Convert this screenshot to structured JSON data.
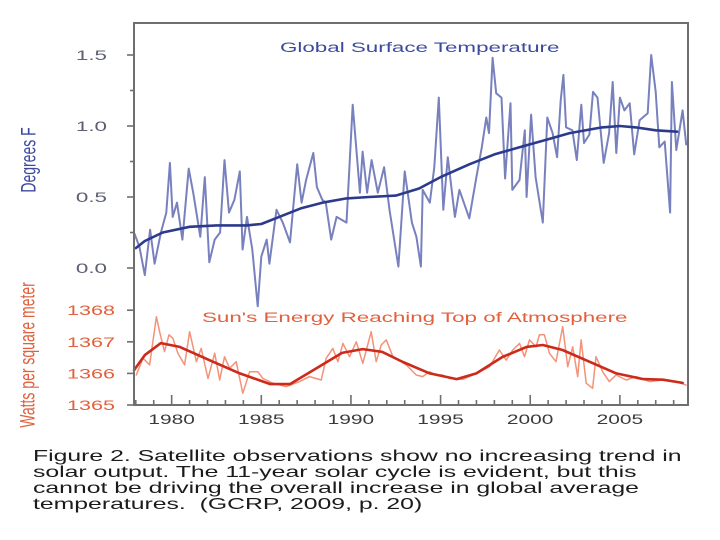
{
  "caption": {
    "lines": [
      "Figure 2. Satellite observations show no increasing trend in",
      "solar output. The 11-year solar cycle is evident, but this",
      "cannot be driving the overall increase in global average",
      "temperatures.  (GCRP, 2009, p. 20)"
    ]
  },
  "colors": {
    "frame": "#6f6f6f",
    "temperature_text": "#3b4b9e",
    "temperature_tick_text": "#5d6072",
    "solar_text": "#e2603c",
    "x_tick_text": "#3a3a3a"
  },
  "chart_data": [
    {
      "type": "line",
      "title": "Global Surface Temperature",
      "xlabel": "",
      "ylabel": "Degrees F",
      "xlim": [
        1977.9,
        2008.8
      ],
      "ylim": [
        0.0,
        1.5
      ],
      "yticks": [
        "0.0",
        "0.5",
        "1.0",
        "1.5"
      ],
      "minor_yticks": true,
      "grid": false,
      "series": [
        {
          "name": "Observed",
          "color": "#6d76b9",
          "points": [
            [
              1977.9,
              0.25
            ],
            [
              1978.2,
              0.15
            ],
            [
              1978.5,
              -0.05
            ],
            [
              1978.8,
              0.27
            ],
            [
              1979.05,
              0.03
            ],
            [
              1979.4,
              0.25
            ],
            [
              1979.7,
              0.39
            ],
            [
              1979.9,
              0.74
            ],
            [
              1980.06,
              0.36
            ],
            [
              1980.3,
              0.46
            ],
            [
              1980.6,
              0.2
            ],
            [
              1980.95,
              0.7
            ],
            [
              1981.2,
              0.53
            ],
            [
              1981.6,
              0.22
            ],
            [
              1981.85,
              0.64
            ],
            [
              1982.1,
              0.04
            ],
            [
              1982.4,
              0.2
            ],
            [
              1982.7,
              0.25
            ],
            [
              1982.95,
              0.76
            ],
            [
              1983.2,
              0.39
            ],
            [
              1983.5,
              0.48
            ],
            [
              1983.8,
              0.68
            ],
            [
              1983.96,
              0.13
            ],
            [
              1984.2,
              0.36
            ],
            [
              1984.5,
              0.13
            ],
            [
              1984.8,
              -0.27
            ],
            [
              1985.0,
              0.08
            ],
            [
              1985.3,
              0.2
            ],
            [
              1985.45,
              0.03
            ],
            [
              1985.85,
              0.41
            ],
            [
              1986.2,
              0.32
            ],
            [
              1986.6,
              0.18
            ],
            [
              1987.0,
              0.73
            ],
            [
              1987.25,
              0.46
            ],
            [
              1987.5,
              0.62
            ],
            [
              1987.9,
              0.81
            ],
            [
              1988.1,
              0.57
            ],
            [
              1988.4,
              0.48
            ],
            [
              1988.6,
              0.46
            ],
            [
              1988.9,
              0.2
            ],
            [
              1989.2,
              0.36
            ],
            [
              1989.75,
              0.32
            ],
            [
              1990.1,
              1.15
            ],
            [
              1990.5,
              0.53
            ],
            [
              1990.65,
              0.82
            ],
            [
              1990.9,
              0.53
            ],
            [
              1991.15,
              0.76
            ],
            [
              1991.5,
              0.53
            ],
            [
              1991.85,
              0.71
            ],
            [
              1992.15,
              0.41
            ],
            [
              1992.65,
              0.01
            ],
            [
              1993.0,
              0.68
            ],
            [
              1993.4,
              0.32
            ],
            [
              1993.65,
              0.22
            ],
            [
              1993.9,
              0.01
            ],
            [
              1994.0,
              0.55
            ],
            [
              1994.4,
              0.46
            ],
            [
              1994.65,
              0.71
            ],
            [
              1994.9,
              1.2
            ],
            [
              1995.15,
              0.41
            ],
            [
              1995.4,
              0.78
            ],
            [
              1995.8,
              0.36
            ],
            [
              1996.05,
              0.55
            ],
            [
              1996.6,
              0.35
            ],
            [
              1997.0,
              0.64
            ],
            [
              1997.3,
              0.85
            ],
            [
              1997.55,
              1.06
            ],
            [
              1997.7,
              0.95
            ],
            [
              1997.9,
              1.48
            ],
            [
              1998.1,
              1.23
            ],
            [
              1998.4,
              1.2
            ],
            [
              1998.6,
              0.63
            ],
            [
              1998.9,
              1.16
            ],
            [
              1999.0,
              0.55
            ],
            [
              1999.4,
              0.62
            ],
            [
              1999.7,
              0.97
            ],
            [
              1999.8,
              0.5
            ],
            [
              2000.05,
              1.08
            ],
            [
              2000.3,
              0.64
            ],
            [
              2000.7,
              0.32
            ],
            [
              2000.95,
              1.06
            ],
            [
              2001.25,
              0.95
            ],
            [
              2001.5,
              0.78
            ],
            [
              2001.7,
              1.18
            ],
            [
              2001.85,
              1.36
            ],
            [
              2002.0,
              0.99
            ],
            [
              2002.35,
              0.97
            ],
            [
              2002.6,
              0.76
            ],
            [
              2002.85,
              1.15
            ],
            [
              2003.0,
              0.88
            ],
            [
              2003.3,
              0.94
            ],
            [
              2003.5,
              1.24
            ],
            [
              2003.75,
              1.2
            ],
            [
              2004.1,
              0.74
            ],
            [
              2004.4,
              0.95
            ],
            [
              2004.6,
              1.31
            ],
            [
              2004.8,
              0.81
            ],
            [
              2005.0,
              1.2
            ],
            [
              2005.25,
              1.11
            ],
            [
              2005.55,
              1.16
            ],
            [
              2005.8,
              0.8
            ],
            [
              2006.1,
              1.04
            ],
            [
              2006.55,
              1.09
            ],
            [
              2006.75,
              1.5
            ],
            [
              2007.0,
              1.24
            ],
            [
              2007.2,
              0.85
            ],
            [
              2007.5,
              0.89
            ],
            [
              2007.8,
              0.39
            ],
            [
              2007.9,
              1.31
            ],
            [
              2008.15,
              0.83
            ],
            [
              2008.5,
              1.11
            ],
            [
              2008.7,
              0.87
            ]
          ]
        },
        {
          "name": "Smoothed trend",
          "color": "#2c3a8c",
          "points": [
            [
              1978.0,
              0.14
            ],
            [
              1978.5,
              0.19
            ],
            [
              1979.5,
              0.25
            ],
            [
              1981.0,
              0.29
            ],
            [
              1982.5,
              0.3
            ],
            [
              1984.2,
              0.3
            ],
            [
              1985.0,
              0.31
            ],
            [
              1986.0,
              0.36
            ],
            [
              1987.2,
              0.42
            ],
            [
              1988.4,
              0.46
            ],
            [
              1989.75,
              0.49
            ],
            [
              1991.0,
              0.5
            ],
            [
              1992.5,
              0.51
            ],
            [
              1993.8,
              0.56
            ],
            [
              1995.0,
              0.64
            ],
            [
              1996.6,
              0.73
            ],
            [
              1998.0,
              0.8
            ],
            [
              1999.4,
              0.85
            ],
            [
              2000.8,
              0.9
            ],
            [
              2002.2,
              0.95
            ],
            [
              2004.0,
              0.99
            ],
            [
              2005.0,
              1.0
            ],
            [
              2005.9,
              0.99
            ],
            [
              2007.0,
              0.97
            ],
            [
              2008.2,
              0.96
            ]
          ]
        }
      ]
    },
    {
      "type": "line",
      "title": "Sun's Energy Reaching Top of Atmosphere",
      "xlabel": "",
      "ylabel": "Watts per square meter",
      "xlim": [
        1977.9,
        2008.8
      ],
      "ylim": [
        1365,
        1368
      ],
      "yticks": [
        "1365",
        "1366",
        "1367",
        "1368"
      ],
      "xticks": [
        "1980",
        "1985",
        "1990",
        "1995",
        "2000",
        "2005"
      ],
      "minor_xticks": "yearly",
      "grid": false,
      "series": [
        {
          "name": "Observed",
          "color": "#f3896c",
          "points": [
            [
              1978.03,
              1365.95
            ],
            [
              1978.4,
              1366.48
            ],
            [
              1978.77,
              1366.27
            ],
            [
              1979.15,
              1367.79
            ],
            [
              1979.33,
              1367.32
            ],
            [
              1979.6,
              1366.69
            ],
            [
              1979.85,
              1367.22
            ],
            [
              1980.07,
              1367.11
            ],
            [
              1980.35,
              1366.64
            ],
            [
              1980.72,
              1366.27
            ],
            [
              1981.0,
              1367.32
            ],
            [
              1981.38,
              1366.37
            ],
            [
              1981.65,
              1366.79
            ],
            [
              1982.03,
              1365.84
            ],
            [
              1982.4,
              1366.64
            ],
            [
              1982.68,
              1365.79
            ],
            [
              1982.95,
              1366.53
            ],
            [
              1983.23,
              1366.16
            ],
            [
              1983.6,
              1366.37
            ],
            [
              1983.97,
              1365.37
            ],
            [
              1984.35,
              1366.05
            ],
            [
              1984.81,
              1366.05
            ],
            [
              1985.09,
              1365.84
            ],
            [
              1985.65,
              1365.69
            ],
            [
              1986.39,
              1365.58
            ],
            [
              1987.13,
              1365.74
            ],
            [
              1987.69,
              1365.9
            ],
            [
              1988.34,
              1365.79
            ],
            [
              1988.62,
              1366.48
            ],
            [
              1988.99,
              1366.79
            ],
            [
              1989.27,
              1366.37
            ],
            [
              1989.55,
              1366.95
            ],
            [
              1989.92,
              1366.53
            ],
            [
              1990.3,
              1367.0
            ],
            [
              1990.66,
              1366.32
            ],
            [
              1991.13,
              1367.32
            ],
            [
              1991.41,
              1366.37
            ],
            [
              1991.69,
              1366.9
            ],
            [
              1991.97,
              1367.06
            ],
            [
              1992.34,
              1366.53
            ],
            [
              1992.71,
              1366.42
            ],
            [
              1993.08,
              1366.27
            ],
            [
              1993.64,
              1365.95
            ],
            [
              1994.0,
              1365.9
            ],
            [
              1994.38,
              1366.05
            ],
            [
              1994.75,
              1365.95
            ],
            [
              1995.12,
              1365.95
            ],
            [
              1995.5,
              1365.84
            ],
            [
              1996.24,
              1365.81
            ],
            [
              1996.98,
              1366.0
            ],
            [
              1997.73,
              1366.21
            ],
            [
              1998.28,
              1366.74
            ],
            [
              1998.66,
              1366.42
            ],
            [
              1999.02,
              1366.74
            ],
            [
              1999.4,
              1366.95
            ],
            [
              1999.68,
              1366.53
            ],
            [
              1999.96,
              1367.06
            ],
            [
              2000.33,
              1366.84
            ],
            [
              2000.51,
              1367.22
            ],
            [
              2000.79,
              1367.22
            ],
            [
              2001.07,
              1366.64
            ],
            [
              2001.44,
              1366.37
            ],
            [
              2001.81,
              1367.48
            ],
            [
              2002.09,
              1366.21
            ],
            [
              2002.37,
              1366.84
            ],
            [
              2002.65,
              1365.9
            ],
            [
              2002.84,
              1367.06
            ],
            [
              2003.12,
              1365.69
            ],
            [
              2003.48,
              1365.53
            ],
            [
              2003.67,
              1366.53
            ],
            [
              2004.04,
              1366.05
            ],
            [
              2004.41,
              1365.74
            ],
            [
              2004.79,
              1365.95
            ],
            [
              2005.35,
              1365.79
            ],
            [
              2005.9,
              1365.9
            ],
            [
              2006.65,
              1365.74
            ],
            [
              2007.39,
              1365.79
            ],
            [
              2008.13,
              1365.74
            ],
            [
              2008.69,
              1365.63
            ]
          ]
        },
        {
          "name": "Smoothed trend",
          "color": "#cc2a1a",
          "points": [
            [
              1977.9,
              1366.1
            ],
            [
              1978.5,
              1366.58
            ],
            [
              1979.4,
              1366.96
            ],
            [
              1980.45,
              1366.84
            ],
            [
              1982.3,
              1366.37
            ],
            [
              1983.8,
              1366.0
            ],
            [
              1985.5,
              1365.66
            ],
            [
              1986.6,
              1365.66
            ],
            [
              1988.1,
              1366.17
            ],
            [
              1989.5,
              1366.65
            ],
            [
              1990.65,
              1366.77
            ],
            [
              1991.75,
              1366.68
            ],
            [
              1992.9,
              1366.36
            ],
            [
              1994.4,
              1366.0
            ],
            [
              1995.9,
              1365.82
            ],
            [
              1997.0,
              1366.0
            ],
            [
              1998.45,
              1366.52
            ],
            [
              1999.8,
              1366.84
            ],
            [
              2000.7,
              1366.9
            ],
            [
              2001.8,
              1366.74
            ],
            [
              2003.3,
              1366.37
            ],
            [
              2004.8,
              1366.0
            ],
            [
              2006.3,
              1365.82
            ],
            [
              2007.4,
              1365.8
            ],
            [
              2008.5,
              1365.7
            ]
          ]
        }
      ]
    }
  ]
}
